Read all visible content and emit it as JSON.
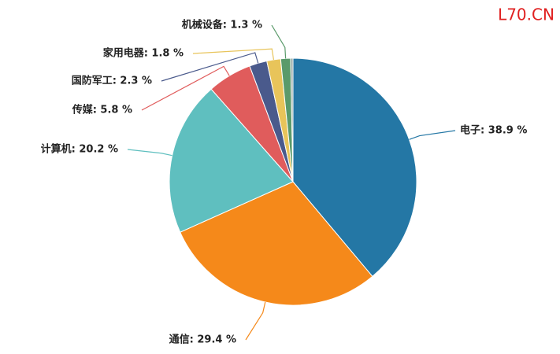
{
  "chart_data": {
    "type": "pie",
    "watermark": "L70.CN",
    "values": [
      38.9,
      29.4,
      20.2,
      5.8,
      2.3,
      1.8,
      1.3,
      0.3
    ],
    "value_labels": [
      "电子: 38.9 %",
      "通信: 29.4 %",
      "计算机: 20.2 %",
      "传媒: 5.8 %",
      "国防军工: 2.3 %",
      "家用电器: 1.8 %",
      "机械设备: 1.3 %",
      null
    ],
    "colors": [
      "#2477a5",
      "#f5891a",
      "#5fbfbf",
      "#e05c5c",
      "#4a5a8c",
      "#e8c45a",
      "#5a9a6a",
      "#8fa3a0"
    ]
  }
}
